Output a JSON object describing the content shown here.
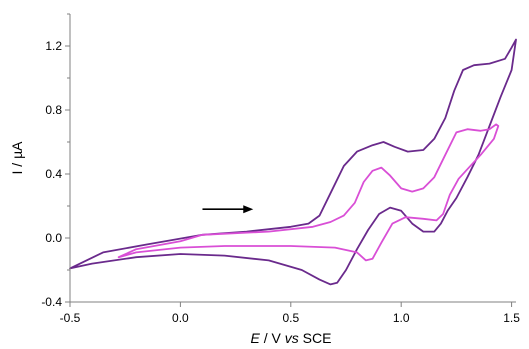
{
  "chart_data": {
    "type": "line",
    "xlabel": {
      "italic": "E",
      "rest1": " / V ",
      "italic2": "vs",
      "rest2": " SCE"
    },
    "ylabel": "I / µA",
    "xlim": [
      -0.5,
      1.52
    ],
    "ylim": [
      -0.4,
      1.4
    ],
    "xticks": [
      {
        "value": -0.5,
        "label": "-0.5"
      },
      {
        "value": 0.0,
        "label": "0.0"
      },
      {
        "value": 0.5,
        "label": "0.5"
      },
      {
        "value": 1.0,
        "label": "1.0"
      },
      {
        "value": 1.5,
        "label": "1.5"
      }
    ],
    "yticks": [
      {
        "value": -0.4,
        "label": "-0.4"
      },
      {
        "value": 0.0,
        "label": "0.0"
      },
      {
        "value": 0.4,
        "label": "0.4"
      },
      {
        "value": 0.8,
        "label": "0.8"
      },
      {
        "value": 1.2,
        "label": "1.2"
      }
    ],
    "yminor": [
      -0.2,
      0.2,
      0.6,
      1.0,
      1.4
    ],
    "arrow": {
      "x_start": 0.1,
      "x_end": 0.33,
      "y": 0.18
    },
    "series": [
      {
        "color": "#6a2a8c",
        "points": [
          [
            0.1,
            0.02
          ],
          [
            0.3,
            0.04
          ],
          [
            0.5,
            0.07
          ],
          [
            0.58,
            0.09
          ],
          [
            0.63,
            0.14
          ],
          [
            0.68,
            0.28
          ],
          [
            0.74,
            0.45
          ],
          [
            0.8,
            0.54
          ],
          [
            0.87,
            0.58
          ],
          [
            0.92,
            0.6
          ],
          [
            0.97,
            0.57
          ],
          [
            1.03,
            0.54
          ],
          [
            1.1,
            0.55
          ],
          [
            1.15,
            0.62
          ],
          [
            1.2,
            0.75
          ],
          [
            1.24,
            0.92
          ],
          [
            1.28,
            1.05
          ],
          [
            1.33,
            1.08
          ],
          [
            1.4,
            1.09
          ],
          [
            1.47,
            1.12
          ],
          [
            1.5,
            1.19
          ],
          [
            1.52,
            1.24
          ],
          [
            1.5,
            1.05
          ],
          [
            1.45,
            0.88
          ],
          [
            1.4,
            0.7
          ],
          [
            1.35,
            0.52
          ],
          [
            1.3,
            0.38
          ],
          [
            1.25,
            0.25
          ],
          [
            1.21,
            0.17
          ],
          [
            1.18,
            0.09
          ],
          [
            1.15,
            0.04
          ],
          [
            1.1,
            0.04
          ],
          [
            1.05,
            0.09
          ],
          [
            1.0,
            0.17
          ],
          [
            0.95,
            0.19
          ],
          [
            0.9,
            0.15
          ],
          [
            0.85,
            0.05
          ],
          [
            0.8,
            -0.07
          ],
          [
            0.75,
            -0.2
          ],
          [
            0.71,
            -0.28
          ],
          [
            0.68,
            -0.29
          ],
          [
            0.63,
            -0.26
          ],
          [
            0.55,
            -0.2
          ],
          [
            0.4,
            -0.14
          ],
          [
            0.2,
            -0.11
          ],
          [
            0.0,
            -0.1
          ],
          [
            -0.2,
            -0.12
          ],
          [
            -0.4,
            -0.16
          ],
          [
            -0.5,
            -0.19
          ],
          [
            -0.35,
            -0.09
          ],
          [
            -0.15,
            -0.04
          ],
          [
            0.1,
            0.02
          ]
        ]
      },
      {
        "color": "#d94fd6",
        "points": [
          [
            0.1,
            0.02
          ],
          [
            0.4,
            0.04
          ],
          [
            0.6,
            0.07
          ],
          [
            0.68,
            0.1
          ],
          [
            0.74,
            0.14
          ],
          [
            0.79,
            0.22
          ],
          [
            0.83,
            0.35
          ],
          [
            0.87,
            0.42
          ],
          [
            0.91,
            0.44
          ],
          [
            0.95,
            0.39
          ],
          [
            1.0,
            0.31
          ],
          [
            1.05,
            0.29
          ],
          [
            1.1,
            0.31
          ],
          [
            1.15,
            0.38
          ],
          [
            1.2,
            0.52
          ],
          [
            1.25,
            0.66
          ],
          [
            1.3,
            0.68
          ],
          [
            1.36,
            0.67
          ],
          [
            1.4,
            0.68
          ],
          [
            1.43,
            0.71
          ],
          [
            1.44,
            0.7
          ],
          [
            1.42,
            0.62
          ],
          [
            1.36,
            0.52
          ],
          [
            1.3,
            0.43
          ],
          [
            1.26,
            0.37
          ],
          [
            1.22,
            0.27
          ],
          [
            1.19,
            0.15
          ],
          [
            1.16,
            0.11
          ],
          [
            1.1,
            0.12
          ],
          [
            1.02,
            0.13
          ],
          [
            0.96,
            0.09
          ],
          [
            0.91,
            -0.03
          ],
          [
            0.87,
            -0.13
          ],
          [
            0.84,
            -0.14
          ],
          [
            0.8,
            -0.09
          ],
          [
            0.7,
            -0.06
          ],
          [
            0.5,
            -0.05
          ],
          [
            0.2,
            -0.05
          ],
          [
            0.0,
            -0.06
          ],
          [
            -0.2,
            -0.09
          ],
          [
            -0.28,
            -0.12
          ],
          [
            -0.2,
            -0.07
          ],
          [
            0.0,
            -0.02
          ],
          [
            0.1,
            0.02
          ]
        ]
      }
    ]
  }
}
